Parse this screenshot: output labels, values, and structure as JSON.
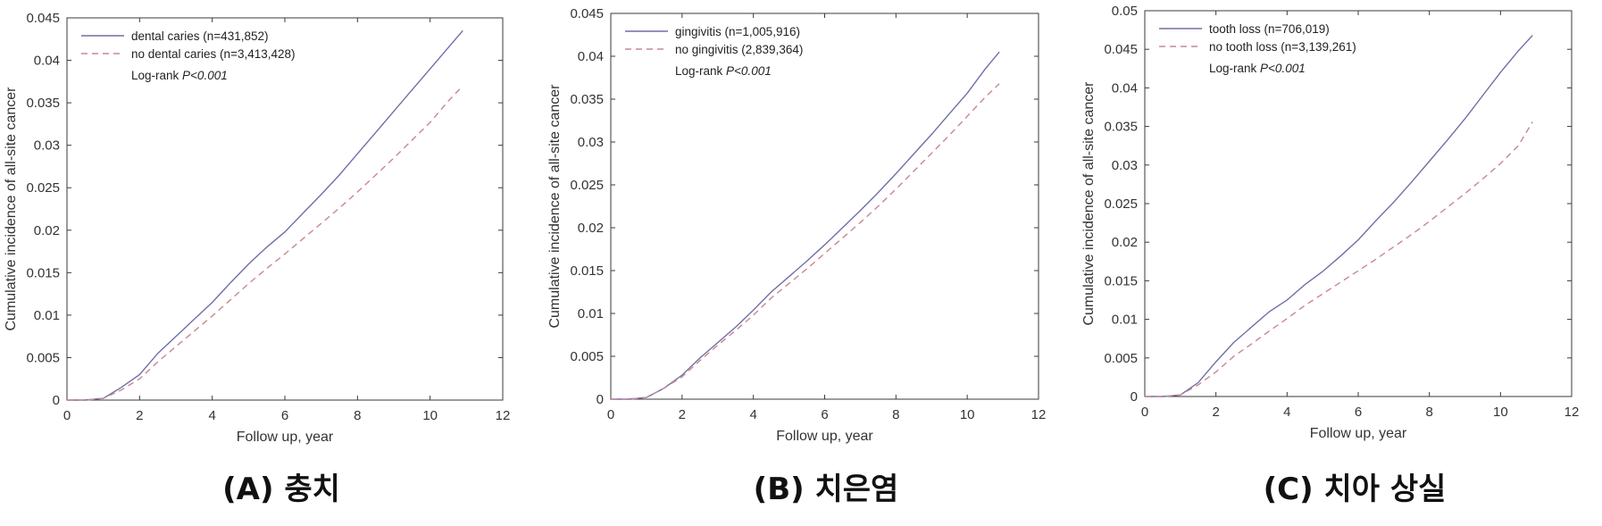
{
  "charts": [
    {
      "caption": "(A) 충치",
      "chart_data": {
        "type": "line",
        "xlabel": "Follow up, year",
        "ylabel": "Cumulative incidence of all-site cancer",
        "xlim": [
          0,
          12
        ],
        "ylim": [
          0,
          0.045
        ],
        "xticks": [
          "0",
          "2",
          "4",
          "6",
          "8",
          "10",
          "12"
        ],
        "yticks": [
          "0",
          "0.005",
          "0.01",
          "0.015",
          "0.02",
          "0.025",
          "0.03",
          "0.035",
          "0.04",
          "0.045"
        ],
        "annotation": "Log-rank",
        "annotation_italic": "P<0.001",
        "series": [
          {
            "name": "dental caries (n=431,852)",
            "style": "solid",
            "color": "#6f6fa8",
            "x": [
              0,
              0.5,
              1.0,
              1.5,
              2,
              2.5,
              3,
              3.5,
              4,
              4.5,
              5,
              5.5,
              6,
              6.5,
              7,
              7.5,
              8,
              8.5,
              9,
              9.5,
              10,
              10.5,
              10.9
            ],
            "y": [
              0,
              0,
              0.0002,
              0.0015,
              0.003,
              0.0055,
              0.0075,
              0.0095,
              0.0115,
              0.0138,
              0.016,
              0.018,
              0.0198,
              0.022,
              0.0242,
              0.0265,
              0.029,
              0.0315,
              0.034,
              0.0365,
              0.039,
              0.0415,
              0.0435
            ]
          },
          {
            "name": "no dental caries (n=3,413,428)",
            "style": "dashed",
            "color": "#c9878f",
            "x": [
              0,
              0.5,
              1.0,
              1.5,
              2,
              2.5,
              3,
              3.5,
              4,
              4.5,
              5,
              5.5,
              6,
              6.5,
              7,
              7.5,
              8,
              8.5,
              9,
              9.5,
              10,
              10.5,
              10.9
            ],
            "y": [
              0,
              0,
              0.0002,
              0.0012,
              0.0025,
              0.0045,
              0.0063,
              0.0081,
              0.0099,
              0.0118,
              0.0137,
              0.0155,
              0.0172,
              0.019,
              0.0208,
              0.0226,
              0.0245,
              0.0265,
              0.0285,
              0.0306,
              0.0327,
              0.0352,
              0.037
            ]
          }
        ]
      }
    },
    {
      "caption": "(B) 치은염",
      "chart_data": {
        "type": "line",
        "xlabel": "Follow up, year",
        "ylabel": "Cumulative incidence of all-site cancer",
        "xlim": [
          0,
          12
        ],
        "ylim": [
          0,
          0.045
        ],
        "xticks": [
          "0",
          "2",
          "4",
          "6",
          "8",
          "10",
          "12"
        ],
        "yticks": [
          "0",
          "0.005",
          "0.01",
          "0.015",
          "0.02",
          "0.025",
          "0.03",
          "0.035",
          "0.04",
          "0.045"
        ],
        "annotation": "Log-rank",
        "annotation_italic": "P<0.001",
        "series": [
          {
            "name": "gingivitis (n=1,005,916)",
            "style": "solid",
            "color": "#6f6fa8",
            "x": [
              0,
              0.5,
              1.0,
              1.5,
              2,
              2.5,
              3,
              3.5,
              4,
              4.5,
              5,
              5.5,
              6,
              6.5,
              7,
              7.5,
              8,
              8.5,
              9,
              9.5,
              10,
              10.5,
              10.9
            ],
            "y": [
              0,
              0,
              0.0002,
              0.0013,
              0.0028,
              0.0048,
              0.0066,
              0.0084,
              0.0104,
              0.0125,
              0.0143,
              0.0161,
              0.018,
              0.02,
              0.022,
              0.0241,
              0.0263,
              0.0286,
              0.0309,
              0.0333,
              0.0357,
              0.0385,
              0.0405
            ]
          },
          {
            "name": "no gingivitis (2,839,364)",
            "style": "dashed",
            "color": "#c9878f",
            "x": [
              0,
              0.5,
              1.0,
              1.5,
              2,
              2.5,
              3,
              3.5,
              4,
              4.5,
              5,
              5.5,
              6,
              6.5,
              7,
              7.5,
              8,
              8.5,
              9,
              9.5,
              10,
              10.5,
              10.9
            ],
            "y": [
              0,
              0,
              0.0002,
              0.0013,
              0.0026,
              0.0045,
              0.0063,
              0.008,
              0.0098,
              0.0118,
              0.0135,
              0.0152,
              0.017,
              0.0188,
              0.0206,
              0.0225,
              0.0245,
              0.0266,
              0.0287,
              0.0308,
              0.033,
              0.0352,
              0.0368
            ]
          }
        ]
      }
    },
    {
      "caption": "(C) 치아 상실",
      "chart_data": {
        "type": "line",
        "xlabel": "Follow up, year",
        "ylabel": "Cumulative incidence of all-site cancer",
        "xlim": [
          0,
          12
        ],
        "ylim": [
          0,
          0.05
        ],
        "xticks": [
          "0",
          "2",
          "4",
          "6",
          "8",
          "10",
          "12"
        ],
        "yticks": [
          "0",
          "0.005",
          "0.01",
          "0.015",
          "0.02",
          "0.025",
          "0.03",
          "0.035",
          "0.04",
          "0.045",
          "0.05"
        ],
        "annotation": "Log-rank",
        "annotation_italic": "P<0.001",
        "series": [
          {
            "name": "tooth loss (n=706,019)",
            "style": "solid",
            "color": "#6f6fa8",
            "x": [
              0,
              0.5,
              1.0,
              1.5,
              2,
              2.5,
              3,
              3.5,
              4,
              4.5,
              5,
              5.5,
              6,
              6.5,
              7,
              7.5,
              8,
              8.5,
              9,
              9.5,
              10,
              10.5,
              10.9
            ],
            "y": [
              0,
              0,
              0.0002,
              0.0018,
              0.0045,
              0.007,
              0.009,
              0.011,
              0.0125,
              0.0145,
              0.0162,
              0.0182,
              0.0203,
              0.0228,
              0.0252,
              0.0278,
              0.0305,
              0.0332,
              0.036,
              0.039,
              0.042,
              0.0448,
              0.0468
            ]
          },
          {
            "name": "no tooth loss (n=3,139,261)",
            "style": "dashed",
            "color": "#c9878f",
            "x": [
              0,
              0.5,
              1.0,
              1.5,
              2,
              2.5,
              3,
              3.5,
              4,
              4.5,
              5,
              5.5,
              6,
              6.5,
              7,
              7.5,
              8,
              8.5,
              9,
              9.5,
              10,
              10.5,
              10.9
            ],
            "y": [
              0,
              0,
              0.0002,
              0.0015,
              0.0032,
              0.0052,
              0.0068,
              0.0085,
              0.0101,
              0.0118,
              0.0133,
              0.0148,
              0.0163,
              0.0178,
              0.0194,
              0.021,
              0.0227,
              0.0245,
              0.0263,
              0.0282,
              0.0302,
              0.0325,
              0.0356
            ]
          }
        ]
      }
    }
  ]
}
